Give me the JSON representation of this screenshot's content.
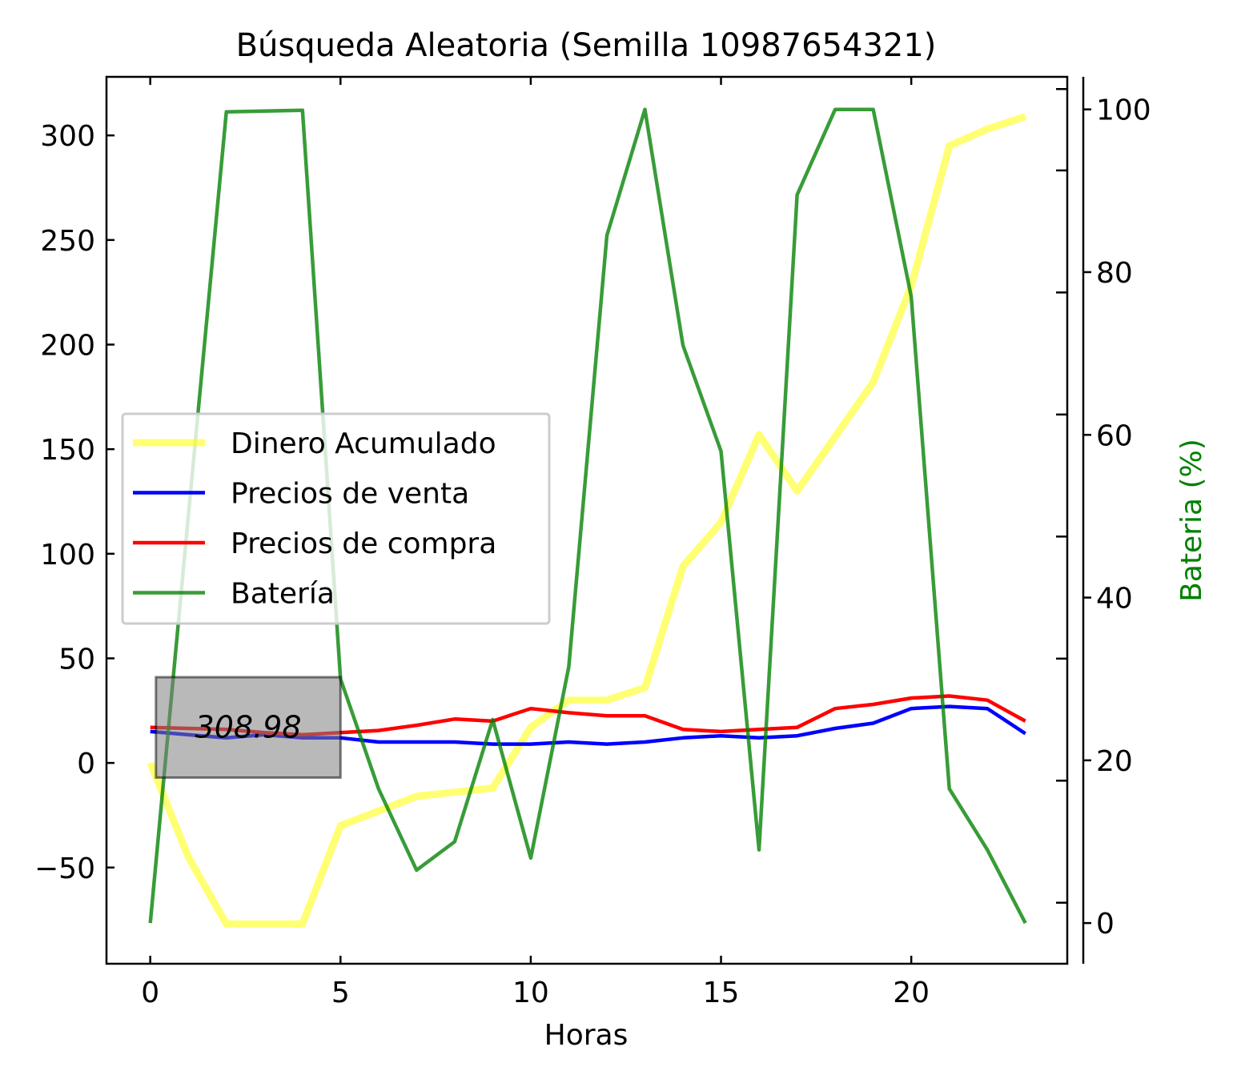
{
  "chart_data": {
    "type": "line",
    "title": "Búsqueda Aleatoria (Semilla 10987654321)",
    "xlabel": "Horas",
    "ylabel": "",
    "y2label": "Bateria (%)",
    "xlim": [
      -1.15,
      24.1
    ],
    "ylim": [
      -96,
      328
    ],
    "y2lim": [
      -5,
      104
    ],
    "xticks": [
      0,
      5,
      10,
      15,
      20
    ],
    "yticks": [
      -50,
      0,
      50,
      100,
      150,
      200,
      250,
      300
    ],
    "yticklabels": [
      "−50",
      "0",
      "50",
      "100",
      "150",
      "200",
      "250",
      "300"
    ],
    "y2ticks": [
      0,
      20,
      40,
      60,
      80,
      100
    ],
    "y2minor": [
      2.5,
      17.5,
      32.5,
      47.5,
      62.5,
      77.5,
      92.5,
      102.5
    ],
    "grid": false,
    "legend_position": "center-left",
    "annotation": "308.98",
    "annotation_xrange": [
      0.15,
      5
    ],
    "annotation_yrange": [
      -7,
      41
    ],
    "x": [
      0,
      1,
      2,
      3,
      4,
      5,
      6,
      7,
      8,
      9,
      10,
      11,
      12,
      13,
      14,
      15,
      16,
      17,
      18,
      19,
      20,
      21,
      22,
      23
    ],
    "series": [
      {
        "name": "Dinero Acumulado",
        "axis": "left",
        "color": "#ffff00",
        "opacity": 0.55,
        "values": [
          0,
          -45,
          -77,
          -77,
          -77,
          -30,
          -23,
          -16,
          -14,
          -12,
          17,
          30,
          30,
          36,
          94,
          115,
          157,
          130,
          156,
          182,
          228,
          295,
          303,
          309
        ]
      },
      {
        "name": "Precios de venta",
        "axis": "left",
        "color": "#0000ff",
        "opacity": 1,
        "values": [
          15,
          13.5,
          12,
          13.5,
          12,
          12,
          10,
          10,
          10,
          9,
          9,
          10,
          9,
          10,
          12,
          13,
          12,
          13,
          16.5,
          19,
          26,
          27,
          26,
          14
        ]
      },
      {
        "name": "Precios de compra",
        "axis": "left",
        "color": "#ff0000",
        "opacity": 1,
        "values": [
          17,
          16.5,
          16,
          14.5,
          13.5,
          14.5,
          15.5,
          18,
          21,
          20,
          26,
          24,
          22.5,
          22.5,
          16,
          15,
          16,
          17,
          26,
          28,
          31,
          32,
          30,
          20
        ]
      },
      {
        "name": "Batería",
        "axis": "right",
        "color": "#008000",
        "opacity": 0.78,
        "values": [
          0,
          50,
          99.7,
          99.8,
          99.9,
          30,
          16.5,
          6.5,
          10,
          25,
          8,
          31.5,
          84.5,
          100,
          71,
          58,
          9,
          89.5,
          100,
          100,
          77,
          16.5,
          9,
          0
        ]
      }
    ]
  }
}
